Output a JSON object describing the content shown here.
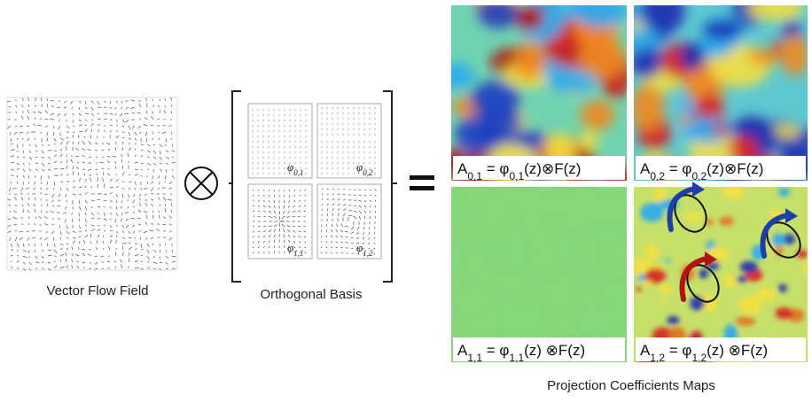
{
  "figure": {
    "flow_field": {
      "caption": "Vector Flow Field"
    },
    "basis": {
      "caption": "Orthogonal Basis",
      "items": [
        {
          "symbol": "φ",
          "sub": "0,1"
        },
        {
          "symbol": "φ",
          "sub": "0,2"
        },
        {
          "symbol": "φ",
          "sub": "1,1"
        },
        {
          "symbol": "φ",
          "sub": "1,2"
        }
      ]
    },
    "maps": {
      "caption": "Projection Coefficients Maps",
      "items": [
        {
          "lhs": "A",
          "lhs_sub": "0,1",
          "mid": " = φ",
          "rhs_sub": "0,1",
          "rhs": "(z)⊗F(z)"
        },
        {
          "lhs": "A",
          "lhs_sub": "0,2",
          "mid": " = φ",
          "rhs_sub": "0,2",
          "rhs": "(z)⊗F(z)"
        },
        {
          "lhs": "A",
          "lhs_sub": "1,1",
          "mid": " = φ",
          "rhs_sub": "1,1",
          "rhs": "(z) ⊗F(z)"
        },
        {
          "lhs": "A",
          "lhs_sub": "1,2",
          "mid": " = φ",
          "rhs_sub": "1,2",
          "rhs": "(z) ⊗F(z)"
        }
      ]
    }
  }
}
